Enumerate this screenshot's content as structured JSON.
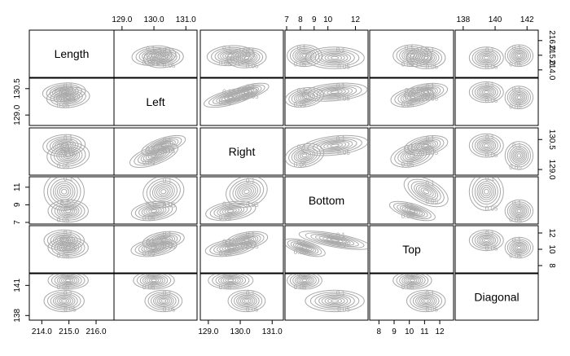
{
  "chart_data": {
    "type": "scatter",
    "title": "",
    "variables": [
      "Length",
      "Left",
      "Right",
      "Bottom",
      "Top",
      "Diagonal"
    ],
    "axes": [
      {
        "var": "Length",
        "range": [
          213.6,
          216.6
        ],
        "ticks": [
          {
            "v": 214.0,
            "l": "214.0"
          },
          {
            "v": 215.0,
            "l": "215.0"
          },
          {
            "v": 216.0,
            "l": "216.0"
          }
        ]
      },
      {
        "var": "Left",
        "range": [
          128.8,
          131.3
        ],
        "ticks": [
          {
            "v": 129.0,
            "l": "129.0"
          },
          {
            "v": 130.0,
            "l": "130.0"
          },
          {
            "v": 131.0,
            "l": "131.0"
          }
        ]
      },
      {
        "var": "Right",
        "range": [
          128.8,
          131.3
        ],
        "ticks": [
          {
            "v": 129.0,
            "l": "129.0"
          },
          {
            "v": 130.0,
            "l": "130.0"
          },
          {
            "v": 131.0,
            "l": "131.0"
          }
        ]
      },
      {
        "var": "Bottom",
        "range": [
          7.0,
          12.8
        ],
        "ticks": [
          {
            "v": 7,
            "l": "7"
          },
          {
            "v": 8,
            "l": "8"
          },
          {
            "v": 9,
            "l": "9"
          },
          {
            "v": 10,
            "l": "10"
          },
          {
            "v": 12,
            "l": "12"
          }
        ]
      },
      {
        "var": "Top",
        "range": [
          7.5,
          12.8
        ],
        "ticks": [
          {
            "v": 8,
            "l": "8"
          },
          {
            "v": 9,
            "l": "9"
          },
          {
            "v": 10,
            "l": "10"
          },
          {
            "v": 11,
            "l": "11"
          },
          {
            "v": 12,
            "l": "12"
          }
        ]
      },
      {
        "var": "Diagonal",
        "range": [
          137.6,
          142.6
        ],
        "ticks": [
          {
            "v": 138,
            "l": "138"
          },
          {
            "v": 140,
            "l": "140"
          },
          {
            "v": 142,
            "l": "142"
          }
        ]
      }
    ],
    "row_axes": [
      {
        "var": "Length",
        "range": [
          213.6,
          216.6
        ],
        "ticks": [
          {
            "v": 214.0,
            "l": "214.0"
          },
          {
            "v": 215.0,
            "l": "215.0"
          },
          {
            "v": 216.0,
            "l": "216.0"
          }
        ]
      },
      {
        "var": "Left",
        "range": [
          128.5,
          131.0
        ],
        "ticks": [
          {
            "v": 129.0,
            "l": "129.0"
          },
          {
            "v": 130.5,
            "l": "130.5"
          }
        ]
      },
      {
        "var": "Right",
        "range": [
          128.8,
          131.0
        ],
        "ticks": [
          {
            "v": 129.0,
            "l": "129.0"
          },
          {
            "v": 130.5,
            "l": "130.5"
          }
        ]
      },
      {
        "var": "Bottom",
        "range": [
          7.0,
          12.0
        ],
        "ticks": [
          {
            "v": 7,
            "l": "7"
          },
          {
            "v": 9,
            "l": "9"
          },
          {
            "v": 11,
            "l": "11"
          }
        ]
      },
      {
        "var": "Top",
        "range": [
          7.3,
          12.7
        ],
        "ticks": [
          {
            "v": 8,
            "l": "8"
          },
          {
            "v": 10,
            "l": "10"
          },
          {
            "v": 12,
            "l": "12"
          }
        ]
      },
      {
        "var": "Diagonal",
        "range": [
          137.7,
          142.0
        ],
        "ticks": [
          {
            "v": 138,
            "l": "138"
          },
          {
            "v": 141,
            "l": "141"
          }
        ]
      }
    ],
    "top_tick_columns": [
      1,
      3,
      5
    ],
    "bottom_tick_columns": [
      0,
      2,
      4
    ],
    "right_tick_rows": [
      0,
      2,
      4
    ],
    "left_tick_rows": [
      1,
      3,
      5
    ],
    "contour_levels": [
      "0.05",
      "0.1",
      "0.15",
      "0.2"
    ],
    "contour_color": "#a9a9a9",
    "groups": [
      {
        "means": [
          214.97,
          130.0,
          129.7,
          8.3,
          10.2,
          141.5
        ],
        "sd": [
          0.38,
          0.33,
          0.36,
          0.65,
          0.65,
          0.45
        ]
      },
      {
        "means": [
          214.82,
          130.3,
          130.2,
          10.5,
          11.1,
          139.45
        ],
        "sd": [
          0.38,
          0.3,
          0.3,
          1.1,
          0.65,
          0.55
        ]
      }
    ],
    "correlations": {
      "Length-Left": 0.2,
      "Length-Right": 0.15,
      "Left-Right": 0.65,
      "Left-Bottom": 0.3,
      "Right-Bottom": 0.35,
      "Left-Top": 0.35,
      "Right-Top": 0.4,
      "Bottom-Top": -0.65
    }
  }
}
